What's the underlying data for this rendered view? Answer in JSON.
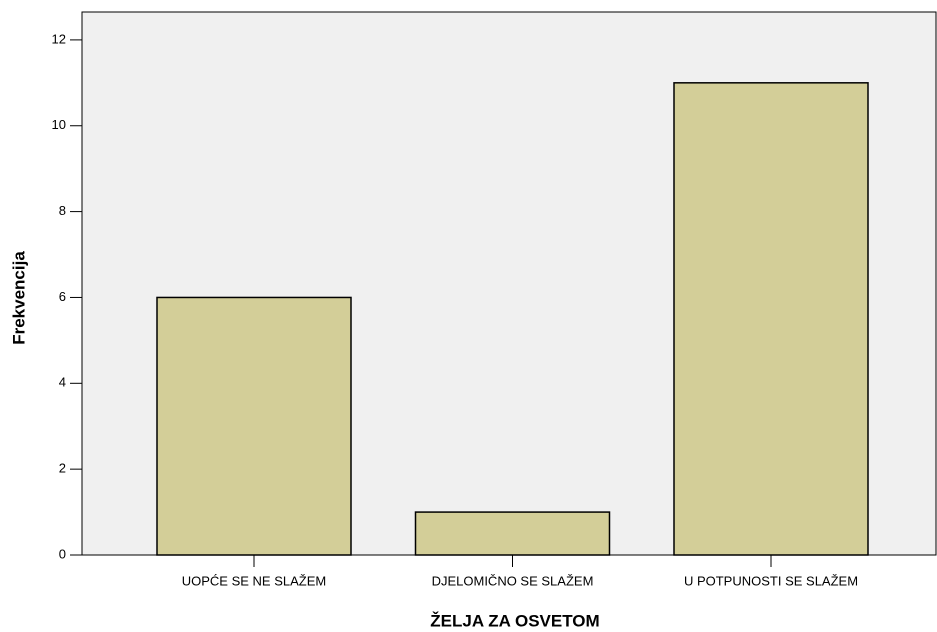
{
  "chart_data": {
    "type": "bar",
    "x_label": "ŽELJA ZA OSVETOM",
    "y_label": "Frekvencija",
    "categories": [
      "UOPĆE SE NE SLAŽEM",
      "DJELOMIČNO SE SLAŽEM",
      "U POTPUNOSTI SE SLAŽEM"
    ],
    "values": [
      6,
      1,
      11
    ],
    "color": "#d3ce98",
    "ylim": [
      0,
      12.65
    ],
    "yticks": [
      0,
      2,
      4,
      6,
      8,
      10,
      12
    ],
    "grid": false
  }
}
